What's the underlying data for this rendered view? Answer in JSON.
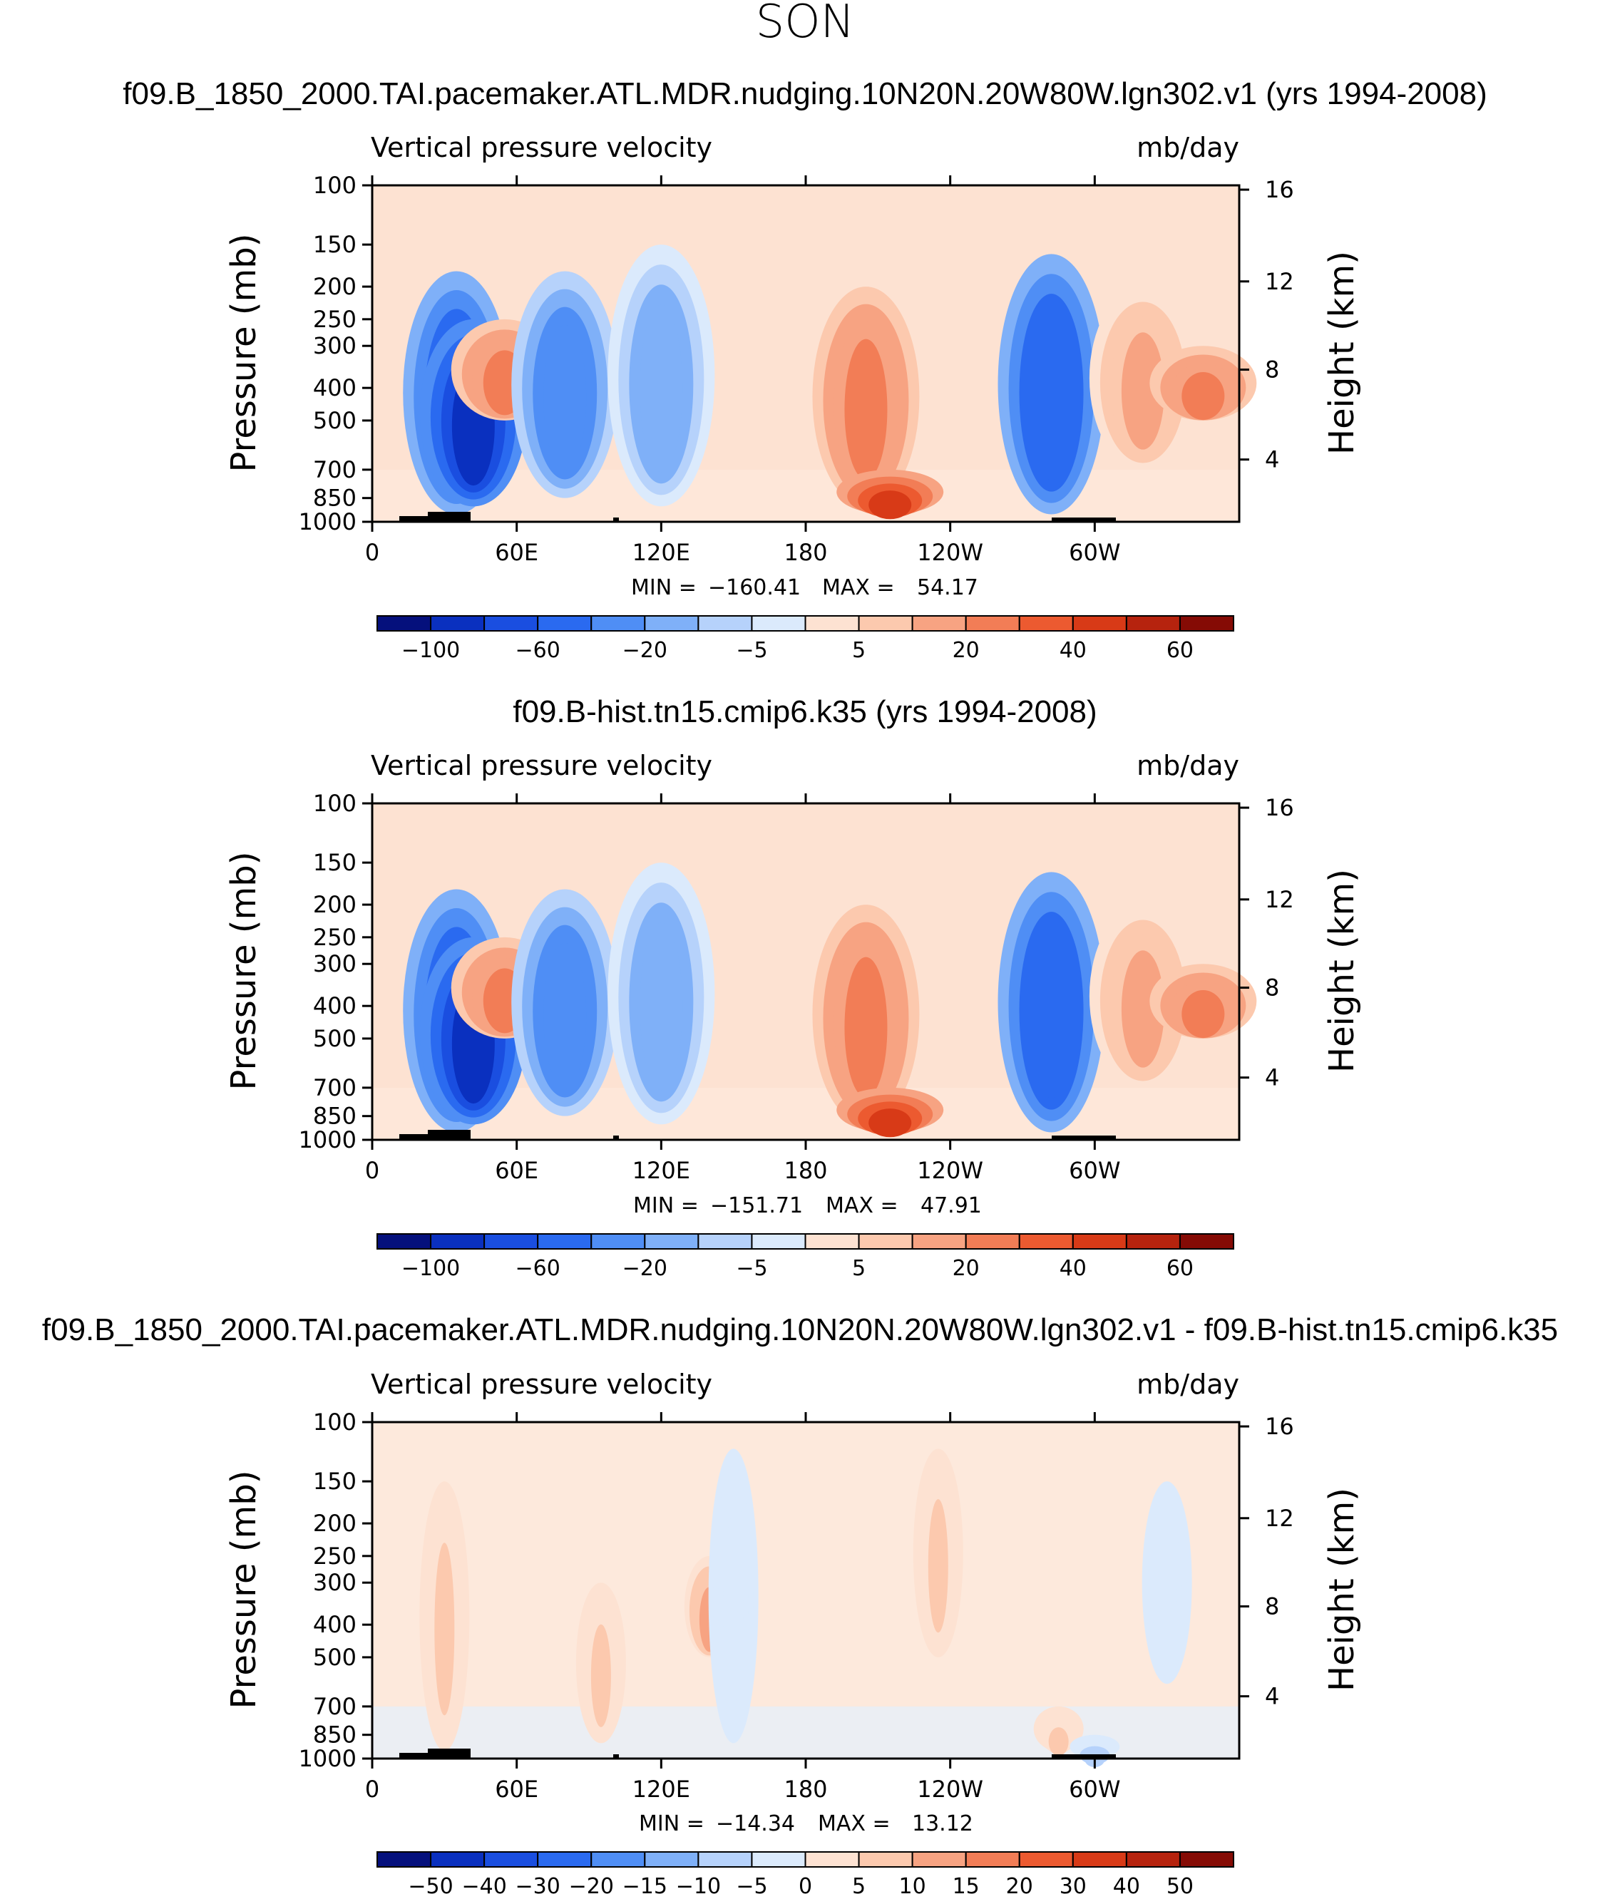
{
  "page_title": "SON",
  "chart_data": [
    {
      "type": "heatmap",
      "title": "f09.B_1850_2000.TAI.pacemaker.ATL.MDR.nudging.10N20N.20W80W.lgn302.v1 (yrs 1994-2008)",
      "left_label": "Vertical pressure velocity",
      "right_label": "mb/day",
      "ylabel": "Pressure (mb)",
      "y2label": "Height (km)",
      "y_ticks": [
        "100",
        "150",
        "200",
        "250",
        "300",
        "400",
        "500",
        "700",
        "850",
        "1000"
      ],
      "y2_ticks": [
        "16",
        "12",
        "8",
        "4"
      ],
      "x_ticks": [
        "0",
        "60E",
        "120E",
        "180",
        "120W",
        "60W"
      ],
      "min_label": "MIN =",
      "min_value": "−160.41",
      "max_label": "MAX =",
      "max_value": "54.17",
      "colorbar_labels": [
        "−100",
        "−60",
        "−20",
        "−5",
        "5",
        "20",
        "40",
        "60"
      ],
      "features": [
        {
          "lon": 35,
          "p_top": 180,
          "p_bot": 950,
          "value": -60
        },
        {
          "lon": 42,
          "p_top": 250,
          "p_bot": 900,
          "value": -100
        },
        {
          "lon": 55,
          "p_top": 250,
          "p_bot": 500,
          "value": 20
        },
        {
          "lon": 80,
          "p_top": 180,
          "p_bot": 850,
          "value": -40
        },
        {
          "lon": 120,
          "p_top": 150,
          "p_bot": 900,
          "value": -20
        },
        {
          "lon": 205,
          "p_top": 200,
          "p_bot": 900,
          "value": 20
        },
        {
          "lon": 215,
          "p_top": 700,
          "p_bot": 950,
          "value": 40
        },
        {
          "lon": 282,
          "p_top": 160,
          "p_bot": 950,
          "value": -60
        },
        {
          "lon": 320,
          "p_top": 200,
          "p_bot": 700,
          "value": 10
        },
        {
          "lon": 345,
          "p_top": 300,
          "p_bot": 500,
          "value": 20
        }
      ]
    },
    {
      "type": "heatmap",
      "title": "f09.B-hist.tn15.cmip6.k35 (yrs 1994-2008)",
      "left_label": "Vertical pressure velocity",
      "right_label": "mb/day",
      "ylabel": "Pressure (mb)",
      "y2label": "Height (km)",
      "y_ticks": [
        "100",
        "150",
        "200",
        "250",
        "300",
        "400",
        "500",
        "700",
        "850",
        "1000"
      ],
      "y2_ticks": [
        "16",
        "12",
        "8",
        "4"
      ],
      "x_ticks": [
        "0",
        "60E",
        "120E",
        "180",
        "120W",
        "60W"
      ],
      "min_label": "MIN =",
      "min_value": "−151.71",
      "max_label": "MAX =",
      "max_value": "47.91",
      "colorbar_labels": [
        "−100",
        "−60",
        "−20",
        "−5",
        "5",
        "20",
        "40",
        "60"
      ],
      "features": [
        {
          "lon": 35,
          "p_top": 180,
          "p_bot": 950,
          "value": -60
        },
        {
          "lon": 42,
          "p_top": 250,
          "p_bot": 900,
          "value": -100
        },
        {
          "lon": 55,
          "p_top": 250,
          "p_bot": 500,
          "value": 20
        },
        {
          "lon": 80,
          "p_top": 180,
          "p_bot": 850,
          "value": -40
        },
        {
          "lon": 120,
          "p_top": 150,
          "p_bot": 900,
          "value": -20
        },
        {
          "lon": 205,
          "p_top": 200,
          "p_bot": 900,
          "value": 20
        },
        {
          "lon": 215,
          "p_top": 700,
          "p_bot": 950,
          "value": 40
        },
        {
          "lon": 282,
          "p_top": 160,
          "p_bot": 950,
          "value": -60
        },
        {
          "lon": 320,
          "p_top": 200,
          "p_bot": 700,
          "value": 10
        },
        {
          "lon": 345,
          "p_top": 300,
          "p_bot": 500,
          "value": 20
        }
      ]
    },
    {
      "type": "heatmap",
      "title": "f09.B_1850_2000.TAI.pacemaker.ATL.MDR.nudging.10N20N.20W80W.lgn302.v1 - f09.B-hist.tn15.cmip6.k35",
      "left_label": "Vertical pressure velocity",
      "right_label": "mb/day",
      "ylabel": "Pressure (mb)",
      "y2label": "Height (km)",
      "y_ticks": [
        "100",
        "150",
        "200",
        "250",
        "300",
        "400",
        "500",
        "700",
        "850",
        "1000"
      ],
      "y2_ticks": [
        "16",
        "12",
        "8",
        "4"
      ],
      "x_ticks": [
        "0",
        "60E",
        "120E",
        "180",
        "120W",
        "60W"
      ],
      "min_label": "MIN =",
      "min_value": "−14.34",
      "max_label": "MAX =",
      "max_value": "13.12",
      "colorbar_labels": [
        "−50",
        "−40",
        "−30",
        "−20",
        "−15",
        "−10",
        "−5",
        "0",
        "5",
        "10",
        "15",
        "20",
        "30",
        "40",
        "50"
      ],
      "features": [
        {
          "lon": 30,
          "p_top": 150,
          "p_bot": 950,
          "value": 5
        },
        {
          "lon": 95,
          "p_top": 300,
          "p_bot": 900,
          "value": 5
        },
        {
          "lon": 140,
          "p_top": 250,
          "p_bot": 500,
          "value": 10
        },
        {
          "lon": 150,
          "p_top": 120,
          "p_bot": 900,
          "value": -5
        },
        {
          "lon": 235,
          "p_top": 120,
          "p_bot": 500,
          "value": 5
        },
        {
          "lon": 285,
          "p_top": 700,
          "p_bot": 950,
          "value": 5
        },
        {
          "lon": 300,
          "p_top": 850,
          "p_bot": 1000,
          "value": -10
        },
        {
          "lon": 330,
          "p_top": 150,
          "p_bot": 600,
          "value": -5
        }
      ]
    }
  ]
}
